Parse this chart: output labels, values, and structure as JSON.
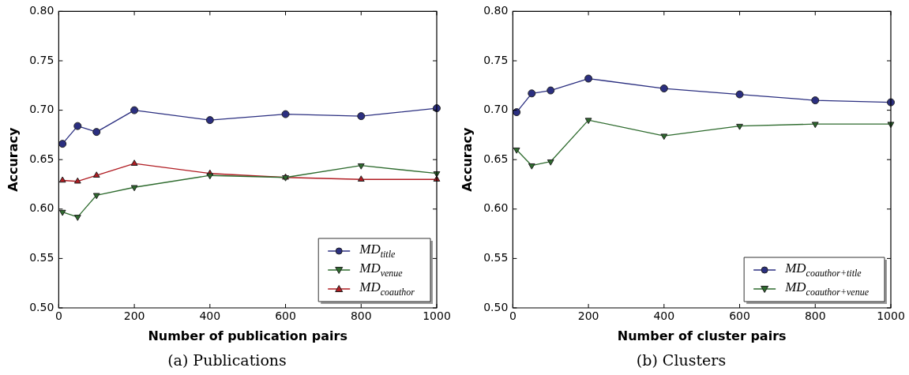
{
  "chart_data": [
    {
      "type": "line",
      "xlabel": "Number of publication pairs",
      "ylabel": "Accuracy",
      "x": [
        10,
        50,
        100,
        200,
        400,
        600,
        800,
        1000
      ],
      "xlim": [
        0,
        1000
      ],
      "xticks": [
        0,
        200,
        400,
        600,
        800,
        1000
      ],
      "ylim": [
        0.5,
        0.8
      ],
      "yticks": [
        {
          "value": 0.5,
          "label": "0.50"
        },
        {
          "value": 0.55,
          "label": "0.55"
        },
        {
          "value": 0.6,
          "label": "0.60"
        },
        {
          "value": 0.65,
          "label": "0.65"
        },
        {
          "value": 0.7,
          "label": "0.70"
        },
        {
          "value": 0.75,
          "label": "0.75"
        },
        {
          "value": 0.8,
          "label": "0.80"
        }
      ],
      "grid": false,
      "legend": "bottom right",
      "line_style": "solid",
      "annotations": [
        "(a) Publications"
      ],
      "series": [
        {
          "name": "MD$_{title}$",
          "color": "#2b2f80",
          "marker": "circle",
          "values": [
            0.666,
            0.684,
            0.678,
            0.7,
            0.69,
            0.696,
            0.694,
            0.702
          ]
        },
        {
          "name": "MD$_{venue}$",
          "color": "#2e6b2e",
          "marker": "triangle-down",
          "values": [
            0.597,
            0.592,
            0.614,
            0.622,
            0.634,
            0.632,
            0.644,
            0.636
          ]
        },
        {
          "name": "MD$_{coauthor}$",
          "color": "#b01c22",
          "marker": "triangle",
          "values": [
            0.629,
            0.628,
            0.634,
            0.646,
            0.636,
            0.632,
            0.63,
            0.63
          ]
        }
      ]
    },
    {
      "type": "line",
      "xlabel": "Number of cluster pairs",
      "ylabel": "Accuracy",
      "x": [
        10,
        50,
        100,
        200,
        400,
        600,
        800,
        1000
      ],
      "xlim": [
        0,
        1000
      ],
      "xticks": [
        0,
        200,
        400,
        600,
        800,
        1000
      ],
      "ylim": [
        0.5,
        0.8
      ],
      "yticks": [
        {
          "value": 0.5,
          "label": "0.50"
        },
        {
          "value": 0.55,
          "label": "0.55"
        },
        {
          "value": 0.6,
          "label": "0.60"
        },
        {
          "value": 0.65,
          "label": "0.65"
        },
        {
          "value": 0.7,
          "label": "0.70"
        },
        {
          "value": 0.75,
          "label": "0.75"
        },
        {
          "value": 0.8,
          "label": "0.80"
        }
      ],
      "grid": false,
      "legend": "bottom right",
      "line_style": "solid",
      "annotations": [
        "(b) Clusters"
      ],
      "series": [
        {
          "name": "MD$_{coauthor+title}$",
          "color": "#2b2f80",
          "marker": "circle",
          "values": [
            0.698,
            0.717,
            0.72,
            0.732,
            0.722,
            0.716,
            0.71,
            0.708
          ]
        },
        {
          "name": "MD$_{coauthor+venue}$",
          "color": "#2e6b2e",
          "marker": "triangle-down",
          "values": [
            0.66,
            0.644,
            0.648,
            0.69,
            0.674,
            0.684,
            0.686,
            0.686
          ]
        }
      ]
    }
  ]
}
